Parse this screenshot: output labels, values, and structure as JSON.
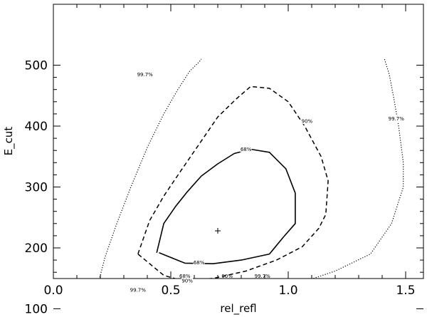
{
  "chart_data": {
    "type": "line",
    "title": "",
    "xlabel": "rel_refl",
    "ylabel": "E_cut",
    "xlim": [
      0.0,
      1.6
    ],
    "ylim": [
      50,
      500
    ],
    "xticks": [
      0.0,
      0.5,
      1.0,
      1.5
    ],
    "xtick_labels": [
      "0.0",
      "0.5",
      "1.0",
      "1.5"
    ],
    "yticks": [
      100,
      200,
      300,
      400,
      500
    ],
    "ytick_labels": [
      "100",
      "200",
      "300",
      "400",
      "500"
    ],
    "grid": false,
    "best_fit": {
      "x": 0.7,
      "y": 228,
      "marker": "+"
    },
    "series": [
      {
        "name": "68%",
        "line_style": "solid",
        "color": "#000000",
        "x": [
          0.44,
          0.47,
          0.52,
          0.57,
          0.63,
          0.7,
          0.77,
          0.84,
          0.92,
          0.99,
          1.03,
          1.03,
          0.98,
          0.92,
          0.8,
          0.68,
          0.56,
          0.45
        ],
        "y": [
          192,
          240,
          268,
          292,
          318,
          338,
          355,
          362,
          357,
          330,
          290,
          240,
          218,
          190,
          180,
          174,
          175,
          192
        ],
        "labels": [
          {
            "text": "68%",
            "x": 0.82,
            "y": 362
          },
          {
            "text": "68%",
            "x": 0.62,
            "y": 176
          }
        ]
      },
      {
        "name": "90%",
        "line_style": "dashed",
        "color": "#000000",
        "x": [
          0.36,
          0.41,
          0.47,
          0.54,
          0.62,
          0.7,
          0.78,
          0.84,
          0.92,
          1.0,
          1.07,
          1.14,
          1.17,
          1.16,
          1.13,
          1.06,
          0.95,
          0.82,
          0.68,
          0.55,
          0.47,
          0.36
        ],
        "y": [
          190,
          245,
          285,
          325,
          370,
          415,
          445,
          465,
          462,
          440,
          400,
          350,
          310,
          255,
          232,
          202,
          180,
          162,
          150,
          146,
          155,
          190
        ],
        "labels": [
          {
            "text": "90%",
            "x": 1.08,
            "y": 408
          },
          {
            "text": "90%",
            "x": 0.57,
            "y": 146
          }
        ]
      },
      {
        "name": "99.7%",
        "line_style": "dotted",
        "color": "#000000",
        "x": [
          0.19,
          0.22,
          0.27,
          0.33,
          0.4,
          0.47,
          0.53,
          0.58,
          0.62,
          0.63
        ],
        "y": [
          140,
          185,
          240,
          300,
          365,
          420,
          460,
          490,
          505,
          510
        ],
        "labels": [
          {
            "text": "99.7%",
            "x": 0.39,
            "y": 485
          }
        ]
      },
      {
        "name": "99.7%",
        "line_style": "dotted",
        "color": "#000000",
        "x": [
          0.19,
          0.23,
          0.33,
          0.5,
          0.7,
          0.9,
          1.07,
          1.2,
          1.35,
          1.44,
          1.49,
          1.49,
          1.47,
          1.45,
          1.43,
          1.41
        ],
        "y": [
          140,
          132,
          127,
          128,
          132,
          137,
          145,
          162,
          190,
          240,
          300,
          340,
          400,
          445,
          485,
          510
        ],
        "labels": [
          {
            "text": "99.7%",
            "x": 0.36,
            "y": 131
          },
          {
            "text": "99.7%",
            "x": 1.46,
            "y": 412
          }
        ]
      }
    ],
    "bottom_labels": [
      {
        "text": "68%",
        "x": 0.56
      },
      {
        "text": "90%",
        "x": 0.74
      },
      {
        "text": "99.7%",
        "x": 0.89
      }
    ]
  }
}
